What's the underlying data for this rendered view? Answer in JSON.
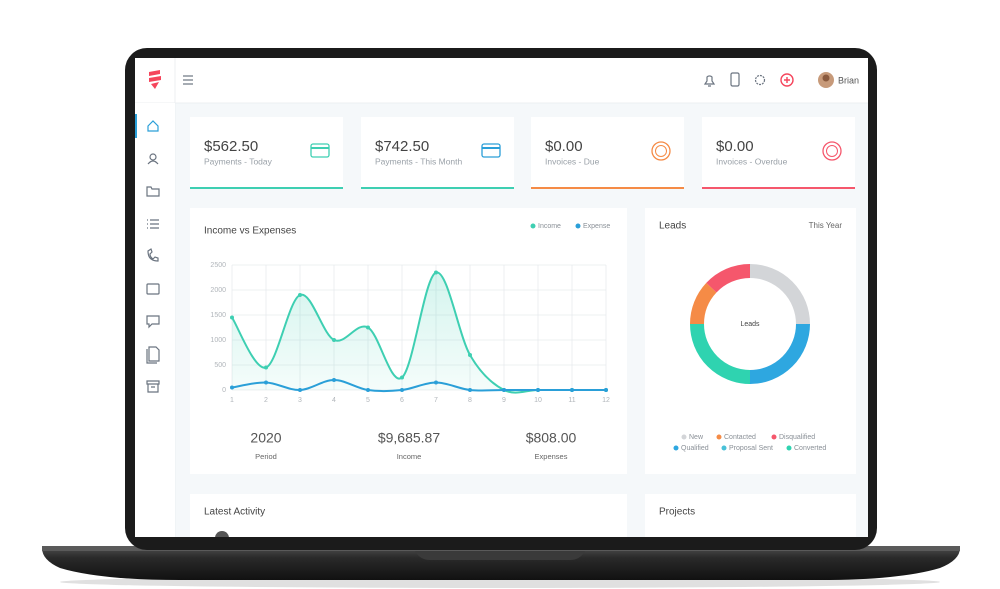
{
  "header": {
    "user": "Brian"
  },
  "cards": [
    {
      "value": "$562.50",
      "label": "Payments - Today"
    },
    {
      "value": "$742.50",
      "label": "Payments - This Month"
    },
    {
      "value": "$0.00",
      "label": "Invoices - Due"
    },
    {
      "value": "$0.00",
      "label": "Invoices - Overdue"
    }
  ],
  "chart_data": [
    {
      "type": "line",
      "title": "Income vs Expenses",
      "x": [
        1,
        2,
        3,
        4,
        5,
        6,
        7,
        8,
        9,
        10,
        11,
        12
      ],
      "xlim": [
        1,
        12
      ],
      "xticks": [
        1,
        2,
        3,
        4,
        5,
        6,
        7,
        8,
        9,
        10,
        11,
        12
      ],
      "ylim": [
        0,
        2500
      ],
      "yticks": [
        0,
        500,
        1000,
        1500,
        2000,
        2500
      ],
      "grid": true,
      "series": [
        {
          "name": "Income",
          "color": "#3ecfb2",
          "values": [
            1450,
            450,
            1900,
            1000,
            1250,
            250,
            2350,
            700,
            0,
            0,
            0,
            0
          ]
        },
        {
          "name": "Expense",
          "color": "#2a9fd8",
          "values": [
            50,
            150,
            0,
            200,
            0,
            0,
            150,
            0,
            0,
            0,
            0,
            0
          ]
        }
      ]
    },
    {
      "type": "donut",
      "title": "Leads",
      "subtitle": "This Year",
      "center_label": "Leads",
      "categories": [
        "New",
        "Qualified",
        "Proposal Sent",
        "Converted",
        "Contacted",
        "Disqualified"
      ],
      "values": [
        25,
        25,
        0,
        25,
        12,
        13
      ],
      "colors": [
        "#d3d5d8",
        "#2ea7e0",
        "#49c1d8",
        "#2fd3b0",
        "#f58b46",
        "#f5576c"
      ]
    }
  ],
  "summary": [
    {
      "value": "2020",
      "label": "Period"
    },
    {
      "value": "$9,685.87",
      "label": "Income"
    },
    {
      "value": "$808.00",
      "label": "Expenses"
    }
  ],
  "panels": {
    "activity_title": "Latest Activity",
    "projects_title": "Projects"
  }
}
